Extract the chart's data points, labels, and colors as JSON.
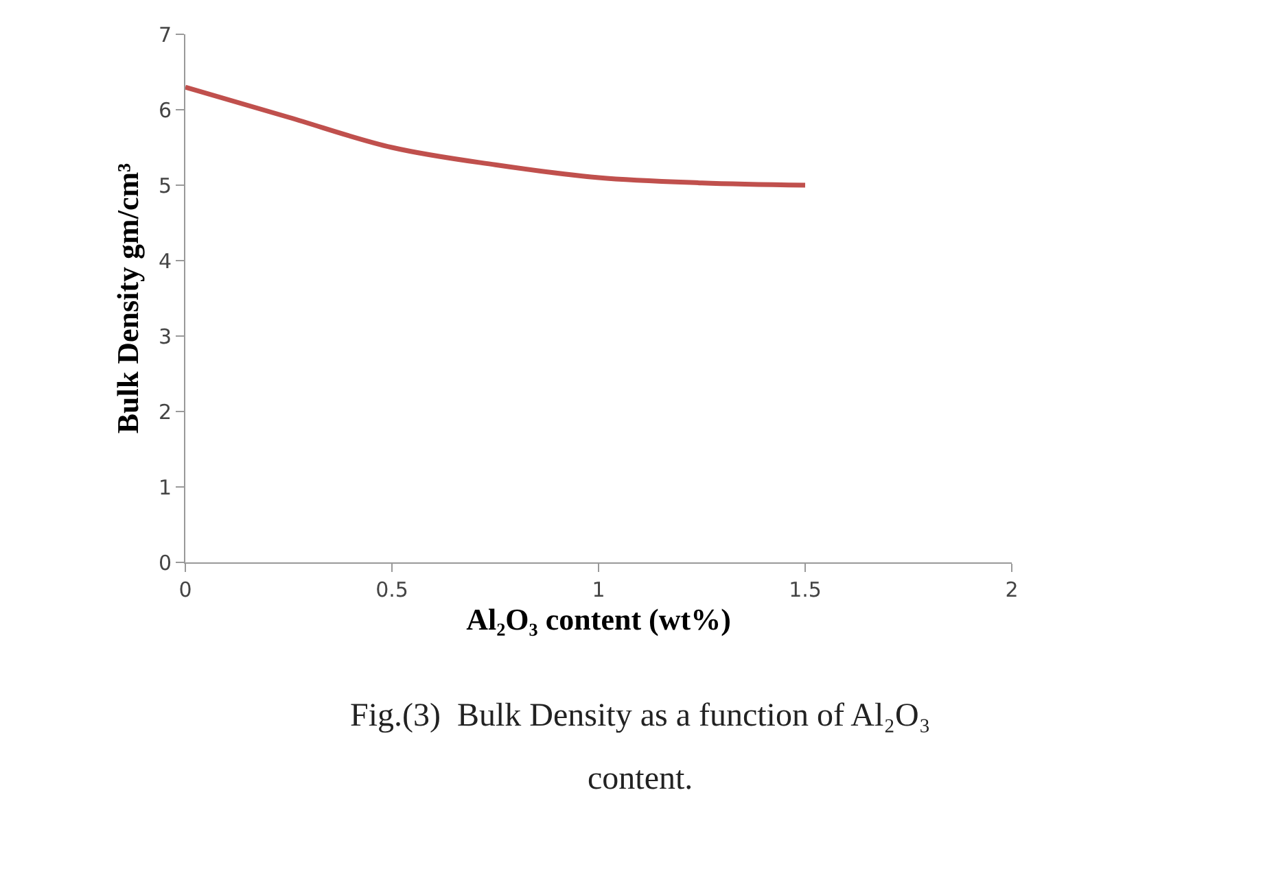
{
  "chart_data": {
    "type": "line",
    "xlabel": "Al₂O₃ content (wt%)",
    "ylabel": "Bulk Density gm/cm³",
    "x": [
      0,
      0.25,
      0.5,
      0.75,
      1,
      1.25,
      1.5
    ],
    "series": [
      {
        "color": "#c0504d",
        "values": [
          6.3,
          5.9,
          5.5,
          5.27,
          5.1,
          5.03,
          5.0
        ]
      }
    ],
    "xlim": [
      0,
      2
    ],
    "xticks": [
      0,
      0.5,
      1,
      1.5,
      2
    ],
    "ylim": [
      0,
      7
    ],
    "yticks": [
      0,
      1,
      2,
      3,
      4,
      5,
      6,
      7
    ],
    "marker": "none",
    "line_style": "solid",
    "annotations": [
      "Fig.(3)  Bulk Density as a function of Al₂O₃",
      "content."
    ]
  }
}
